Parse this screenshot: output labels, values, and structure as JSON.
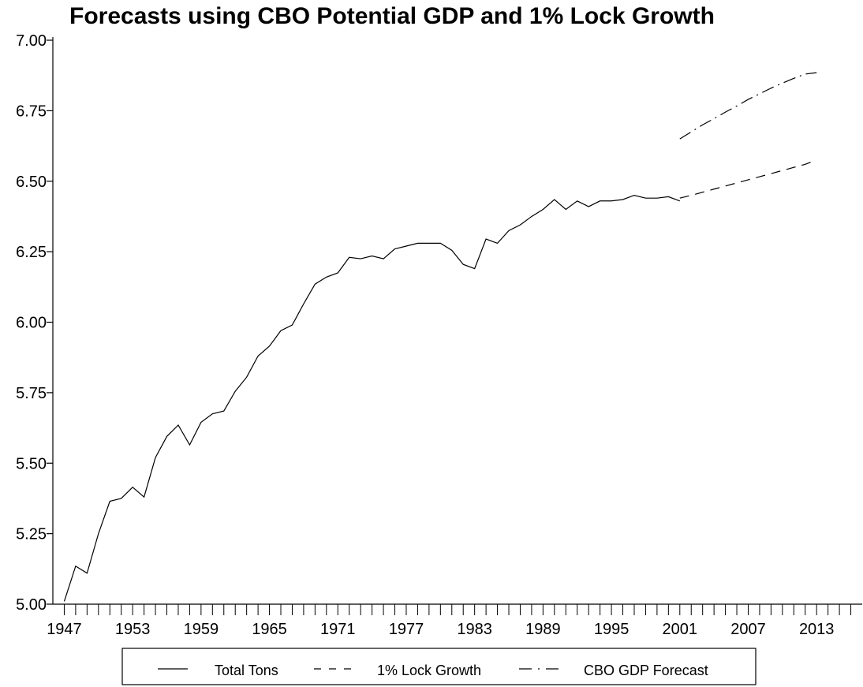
{
  "chart_data": {
    "type": "line",
    "title": "Forecasts using CBO Potential GDP and 1% Lock Growth",
    "xlabel": "",
    "ylabel": "",
    "ylim": [
      5.0,
      7.0
    ],
    "yticks": [
      5.0,
      5.25,
      5.5,
      5.75,
      6.0,
      6.25,
      6.5,
      6.75,
      7.0
    ],
    "ytick_labels": [
      "5.00",
      "5.25",
      "5.50",
      "5.75",
      "6.00",
      "6.25",
      "6.50",
      "6.75",
      "7.00"
    ],
    "xlim": [
      1946,
      2017
    ],
    "xtick_labels": [
      "1947",
      "1953",
      "1959",
      "1965",
      "1971",
      "1977",
      "1983",
      "1989",
      "1995",
      "2001",
      "2007",
      "2013"
    ],
    "grid": false,
    "legend_position": "bottom",
    "series": [
      {
        "name": "Total Tons",
        "style": "solid",
        "x": [
          1947,
          1948,
          1949,
          1950,
          1951,
          1952,
          1953,
          1954,
          1955,
          1956,
          1957,
          1958,
          1959,
          1960,
          1961,
          1962,
          1963,
          1964,
          1965,
          1966,
          1967,
          1968,
          1969,
          1970,
          1971,
          1972,
          1973,
          1974,
          1975,
          1976,
          1977,
          1978,
          1979,
          1980,
          1981,
          1982,
          1983,
          1984,
          1985,
          1986,
          1987,
          1988,
          1989,
          1990,
          1991,
          1992,
          1993,
          1994,
          1995,
          1996,
          1997,
          1998,
          1999,
          2000,
          2001
        ],
        "values": [
          5.01,
          5.135,
          5.11,
          5.25,
          5.365,
          5.375,
          5.415,
          5.38,
          5.52,
          5.595,
          5.635,
          5.565,
          5.645,
          5.675,
          5.685,
          5.755,
          5.805,
          5.88,
          5.915,
          5.97,
          5.99,
          6.065,
          6.135,
          6.16,
          6.175,
          6.23,
          6.225,
          6.235,
          6.225,
          6.26,
          6.27,
          6.28,
          6.28,
          6.28,
          6.255,
          6.205,
          6.19,
          6.295,
          6.28,
          6.325,
          6.345,
          6.375,
          6.4,
          6.435,
          6.4,
          6.43,
          6.41,
          6.43,
          6.43,
          6.435,
          6.45,
          6.44,
          6.44,
          6.445,
          6.43
        ]
      },
      {
        "name": "1% Lock Growth",
        "style": "dashed",
        "x": [
          2001,
          2002,
          2003,
          2004,
          2005,
          2006,
          2007,
          2008,
          2009,
          2010,
          2011,
          2012,
          2013
        ],
        "values": [
          6.44,
          6.45,
          6.461,
          6.472,
          6.483,
          6.494,
          6.505,
          6.516,
          6.527,
          6.538,
          6.549,
          6.56,
          6.575
        ]
      },
      {
        "name": "CBO GDP Forecast",
        "style": "dash-dot",
        "x": [
          2001,
          2002,
          2003,
          2004,
          2005,
          2006,
          2007,
          2008,
          2009,
          2010,
          2011,
          2012,
          2013
        ],
        "values": [
          6.65,
          6.675,
          6.7,
          6.722,
          6.745,
          6.767,
          6.79,
          6.81,
          6.83,
          6.848,
          6.865,
          6.88,
          6.885
        ]
      }
    ]
  }
}
